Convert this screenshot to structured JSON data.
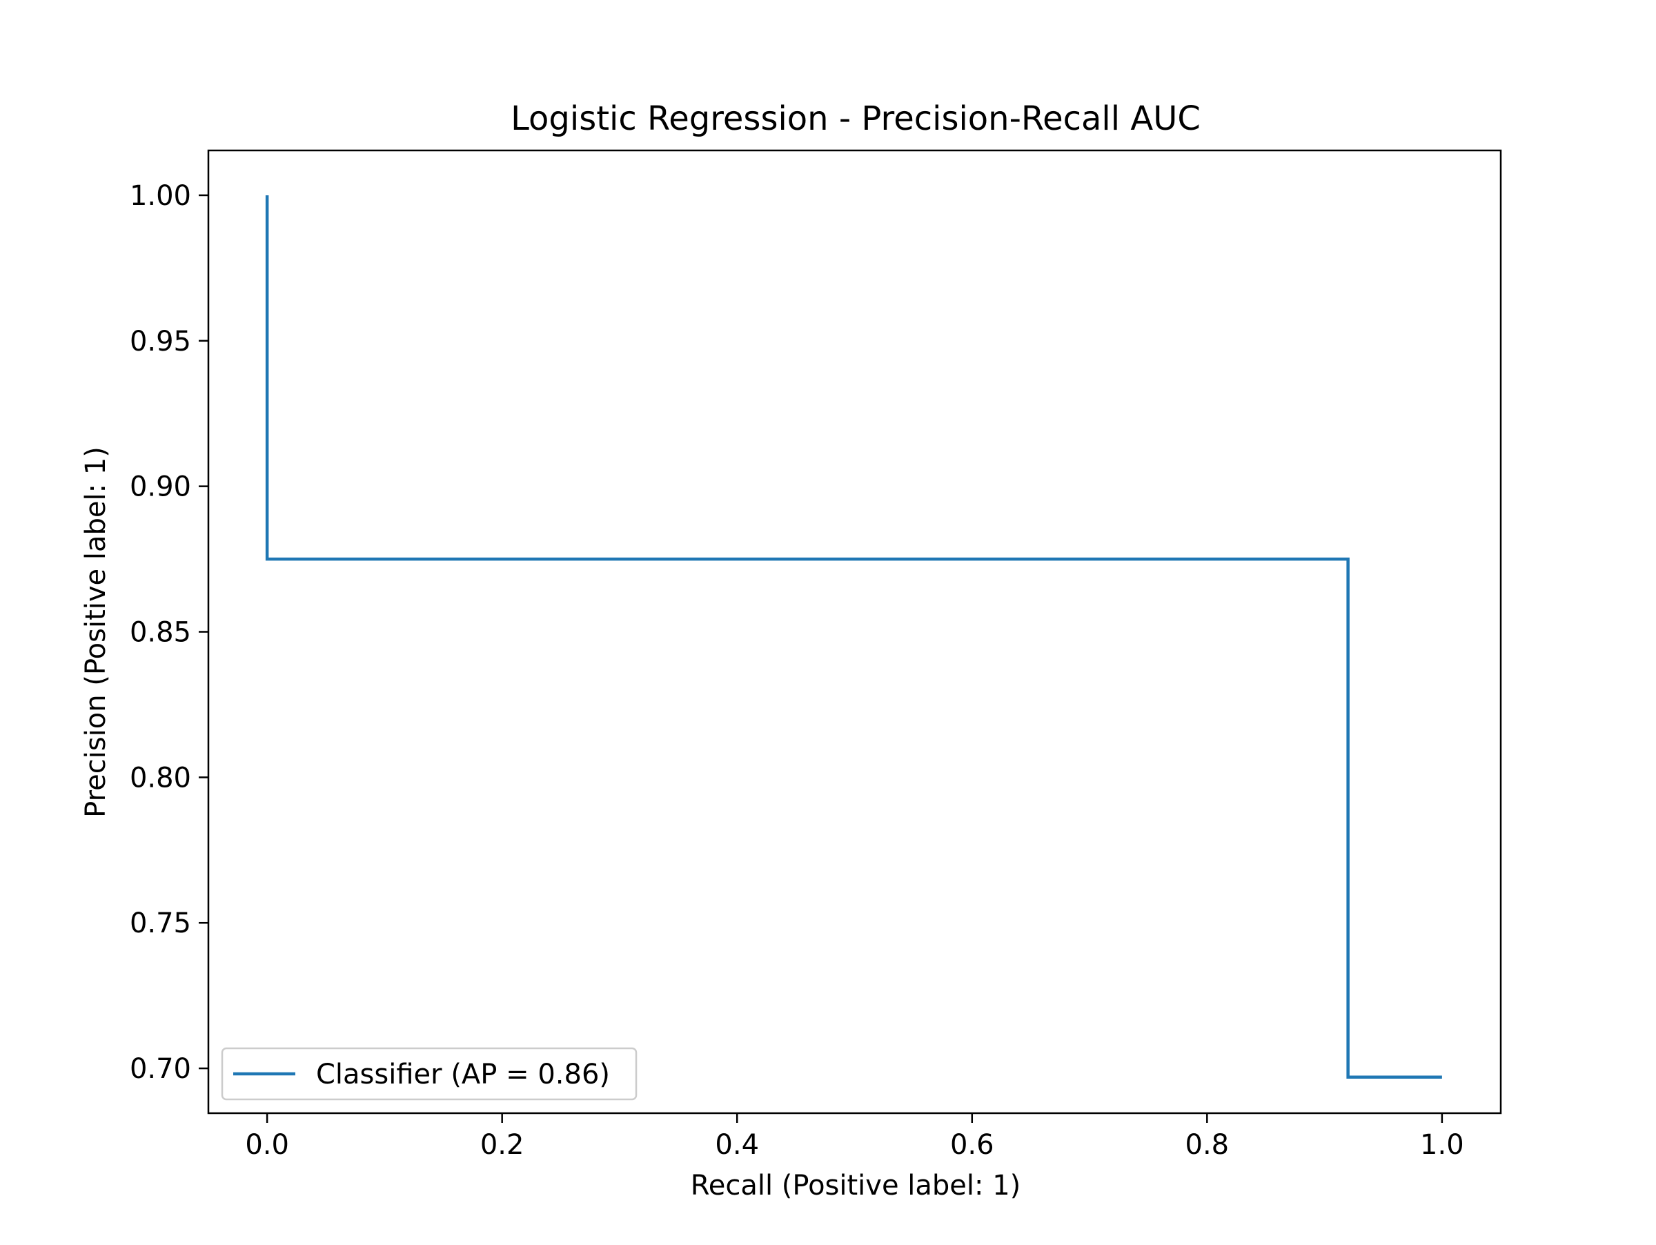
{
  "chart_data": {
    "type": "line",
    "title": "Logistic Regression - Precision-Recall AUC",
    "xlabel": "Recall (Positive label: 1)",
    "ylabel": "Precision (Positive label: 1)",
    "xlim": [
      -0.05,
      1.05
    ],
    "ylim": [
      0.6846,
      1.0154
    ],
    "x_ticks": [
      0.0,
      0.2,
      0.4,
      0.6,
      0.8,
      1.0
    ],
    "x_tick_labels": [
      "0.0",
      "0.2",
      "0.4",
      "0.6",
      "0.8",
      "1.0"
    ],
    "y_ticks": [
      0.7,
      0.75,
      0.8,
      0.85,
      0.9,
      0.95,
      1.0
    ],
    "y_tick_labels": [
      "0.70",
      "0.75",
      "0.80",
      "0.85",
      "0.90",
      "0.95",
      "1.00"
    ],
    "grid": false,
    "legend_position": "lower-left",
    "series": [
      {
        "name": "Classifier (AP = 0.86)",
        "color": "#1f77b4",
        "drawstyle": "steps-post",
        "x": [
          0.0,
          0.0,
          0.92,
          0.92,
          1.0
        ],
        "y": [
          1.0,
          0.875,
          0.875,
          0.697,
          0.697
        ]
      }
    ]
  }
}
